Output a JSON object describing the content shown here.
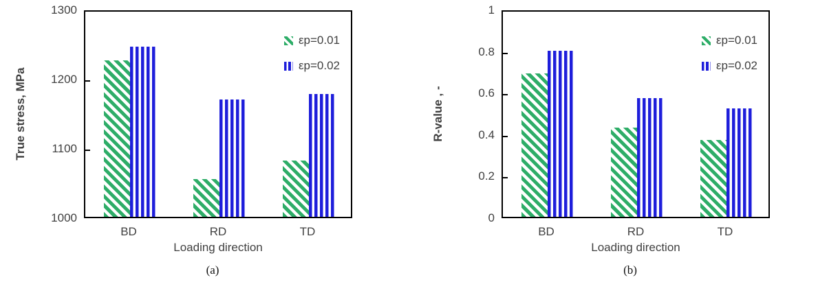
{
  "figure": {
    "colors": {
      "series_green": "#2EAD68",
      "series_blue": "#1E1EDB",
      "text": "#404040",
      "axis": "#000000"
    }
  },
  "chart_data": [
    {
      "id": "a",
      "type": "bar",
      "caption": "(a)",
      "xlabel": "Loading direction",
      "ylabel": "True stress, MPa",
      "categories": [
        "BD",
        "RD",
        "TD"
      ],
      "series": [
        {
          "name": "εp=0.01",
          "pattern": "diagonal-hatch",
          "color": "#2EAD68",
          "values": [
            1226,
            1055,
            1081
          ]
        },
        {
          "name": "εp=0.02",
          "pattern": "vertical-stripes",
          "color": "#1E1EDB",
          "values": [
            1246,
            1169,
            1177
          ]
        }
      ],
      "ylim": [
        1000,
        1300
      ],
      "yticks": [
        "1000",
        "1100",
        "1200",
        "1300"
      ],
      "grid": false,
      "legend_position": "top-right-inside"
    },
    {
      "id": "b",
      "type": "bar",
      "caption": "(b)",
      "xlabel": "Loading direction",
      "ylabel": "R-value , -",
      "categories": [
        "BD",
        "RD",
        "TD"
      ],
      "series": [
        {
          "name": "εp=0.01",
          "pattern": "diagonal-hatch",
          "color": "#2EAD68",
          "values": [
            0.69,
            0.43,
            0.37
          ]
        },
        {
          "name": "εp=0.02",
          "pattern": "vertical-stripes",
          "color": "#1E1EDB",
          "values": [
            0.8,
            0.57,
            0.52
          ]
        }
      ],
      "ylim": [
        0,
        1
      ],
      "yticks": [
        "0",
        "0.2",
        "0.4",
        "0.6",
        "0.8",
        "1"
      ],
      "grid": false,
      "legend_position": "top-right-inside"
    }
  ]
}
